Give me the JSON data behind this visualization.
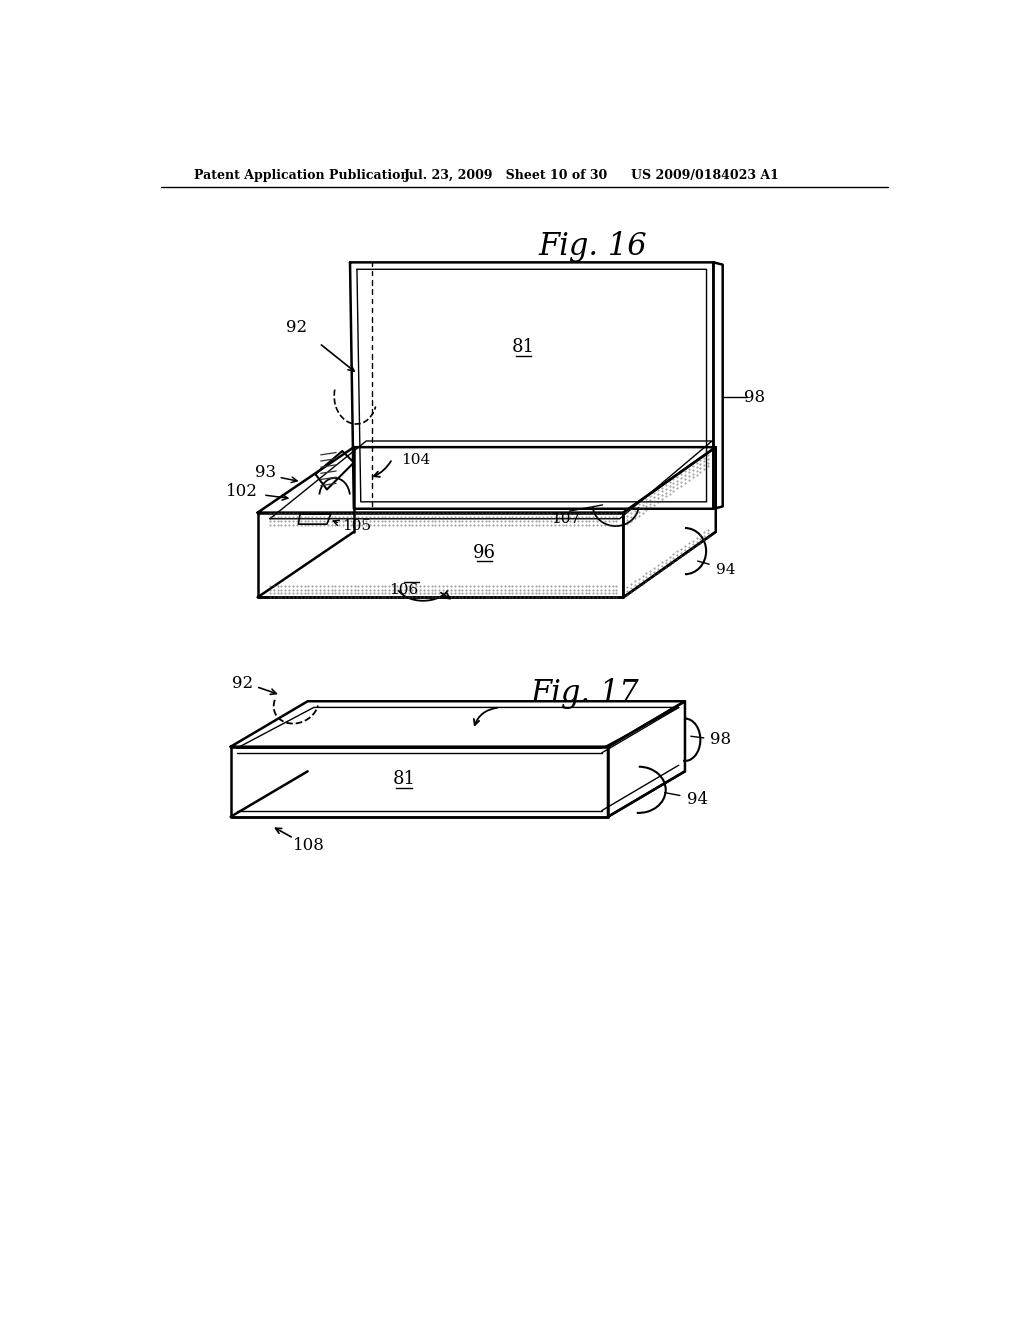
{
  "bg_color": "#ffffff",
  "header_left": "Patent Application Publication",
  "header_mid": "Jul. 23, 2009   Sheet 10 of 30",
  "header_right": "US 2009/0184023 A1",
  "fig16_title": "Fig. 16",
  "fig17_title": "Fig. 17"
}
